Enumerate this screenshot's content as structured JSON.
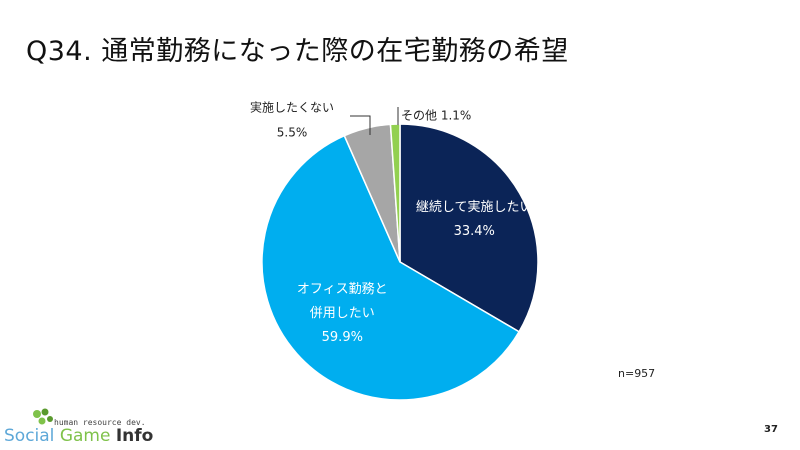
{
  "title": "Q34. 通常勤務になった際の在宅勤務の希望",
  "note": "n=957",
  "page_number": "37",
  "logo": {
    "tagline": "human resource dev.",
    "word1": "Social",
    "word2": "Game",
    "word3": "Info"
  },
  "colors": {
    "continue": "#0b2457",
    "combined": "#00aeef",
    "not_wanted": "#a6a6a6",
    "other": "#92d050"
  },
  "chart_data": {
    "type": "pie",
    "title": "",
    "start": "12 o'clock",
    "direction": "clockwise",
    "slices": [
      {
        "label_lines": [
          "継続して実施したい"
        ],
        "value": 33.4,
        "value_label": "33.4%",
        "color": "#0b2457",
        "label_position": "inside",
        "text_color": "#ffffff"
      },
      {
        "label_lines": [
          "オフィス勤務と",
          "併用したい"
        ],
        "value": 59.9,
        "value_label": "59.9%",
        "color": "#00aeef",
        "label_position": "inside",
        "text_color": "#ffffff"
      },
      {
        "label_lines": [
          "実施したくない"
        ],
        "value": 5.5,
        "value_label": "5.5%",
        "color": "#a6a6a6",
        "label_position": "outside",
        "text_color": "#222222"
      },
      {
        "label_lines": [
          "その他"
        ],
        "value": 1.1,
        "value_label": "1.1%",
        "color": "#92d050",
        "label_position": "outside",
        "text_color": "#222222"
      }
    ]
  }
}
